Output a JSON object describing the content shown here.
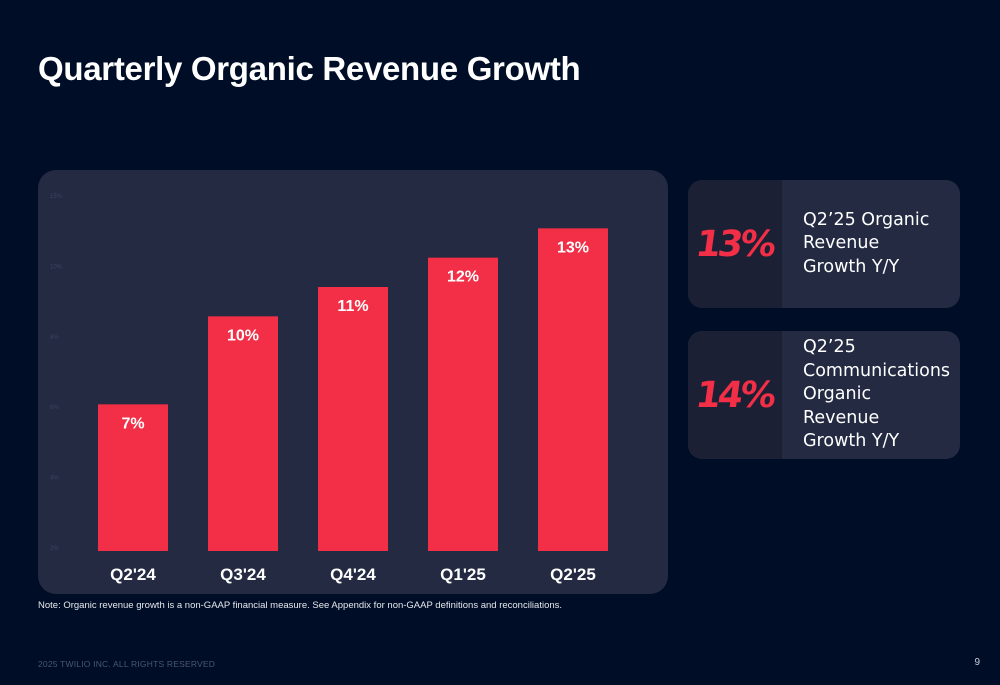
{
  "title": "Quarterly Organic Revenue Growth",
  "colors": {
    "background": "#000d26",
    "panel": "#232a42",
    "bar": "#f22f46",
    "accent": "#f22f46"
  },
  "chart_data": {
    "type": "bar",
    "title": "",
    "categories": [
      "Q2'24",
      "Q3'24",
      "Q4'24",
      "Q1'25",
      "Q2'25"
    ],
    "values": [
      7,
      10,
      11,
      12,
      13
    ],
    "data_labels": [
      "7%",
      "10%",
      "11%",
      "12%",
      "13%"
    ],
    "ylim": [
      2,
      14
    ],
    "xlabel": "",
    "ylabel": "",
    "grid": false,
    "y_axis_faint_labels": [
      "15%",
      "10%",
      "8%",
      "6%",
      "4%",
      "2%"
    ]
  },
  "cards": [
    {
      "value": "13%",
      "description": "Q2’25 Organic Revenue Growth Y/Y"
    },
    {
      "value": "14%",
      "description": "Q2’25 Communications Organic Revenue Growth Y/Y"
    }
  ],
  "note": "Note: Organic revenue growth is a non-GAAP financial measure. See Appendix for non-GAAP definitions and reconciliations.",
  "footer": "2025 TWILIO INC. ALL RIGHTS RESERVED",
  "page_number": "9"
}
